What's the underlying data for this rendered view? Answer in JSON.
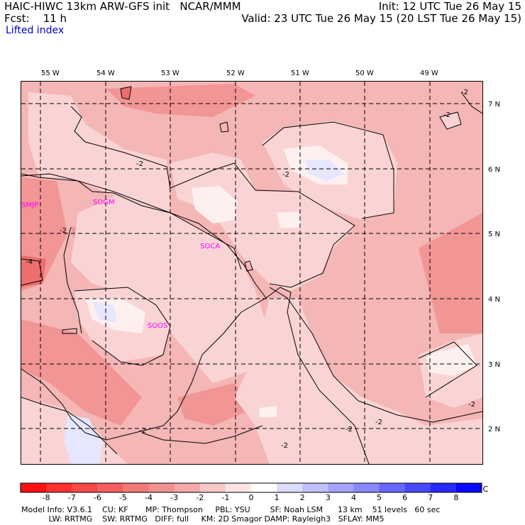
{
  "header": {
    "left_line1": "HAIC-HIWC 13km ARW-GFS init   NCAR/MMM",
    "left_line2": "Fcst:    11 h",
    "right_line1": "Init: 12 UTC Tue 26 May 15",
    "right_line2": "Valid: 23 UTC Tue 26 May 15 (20 LST Tue 26 May 15)",
    "field_name": "Lifted index"
  },
  "map": {
    "lon_labels": [
      "55 W",
      "54 W",
      "53 W",
      "52 W",
      "51 W",
      "50 W",
      "49 W"
    ],
    "lat_labels": [
      "7 N",
      "6 N",
      "5 N",
      "4 N",
      "3 N",
      "2 N"
    ],
    "stations": [
      "SMJP",
      "SOGM",
      "SOCA",
      "SOOS"
    ],
    "contour_labels": [
      "-2",
      "-2",
      "-2",
      "-2",
      "-2",
      "-2",
      "-2",
      "-2",
      "-2",
      "-2",
      "-4"
    ],
    "colors": {
      "bg": "#f5b6b6",
      "light": "#fad4d4",
      "mid": "#f29595",
      "dark": "#ee6e6e",
      "white": "#fff0f0",
      "bluish": "#e6e6ff",
      "station": "#ff00ff"
    }
  },
  "colorbar": {
    "ticks": [
      "-8",
      "-7",
      "-6",
      "-5",
      "-4",
      "-3",
      "-2",
      "-1",
      "0",
      "1",
      "2",
      "3",
      "4",
      "5",
      "6",
      "7",
      "8"
    ],
    "unit": "°C",
    "colors": [
      "#ff1010",
      "#ff3030",
      "#f84848",
      "#f46060",
      "#f27878",
      "#f29090",
      "#f4a8a8",
      "#f8c8c8",
      "#fde4e4",
      "#ffffff",
      "#dcdcff",
      "#c0c0ff",
      "#a4a4ff",
      "#8888ff",
      "#6868ff",
      "#4848ff",
      "#2828ff",
      "#0808ff"
    ]
  },
  "footer": {
    "line1": "Model Info: V3.6.1    CU: KF       MP: Thompson     PBL: YSU        SF: Noah LSM      13 km    51 levels   60 sec",
    "line2": "           LW: RRTMG    SW: RRTMG   DIFF: full     KM: 2D Smagor DAMP: Rayleigh3   SFLAY: MM5"
  }
}
